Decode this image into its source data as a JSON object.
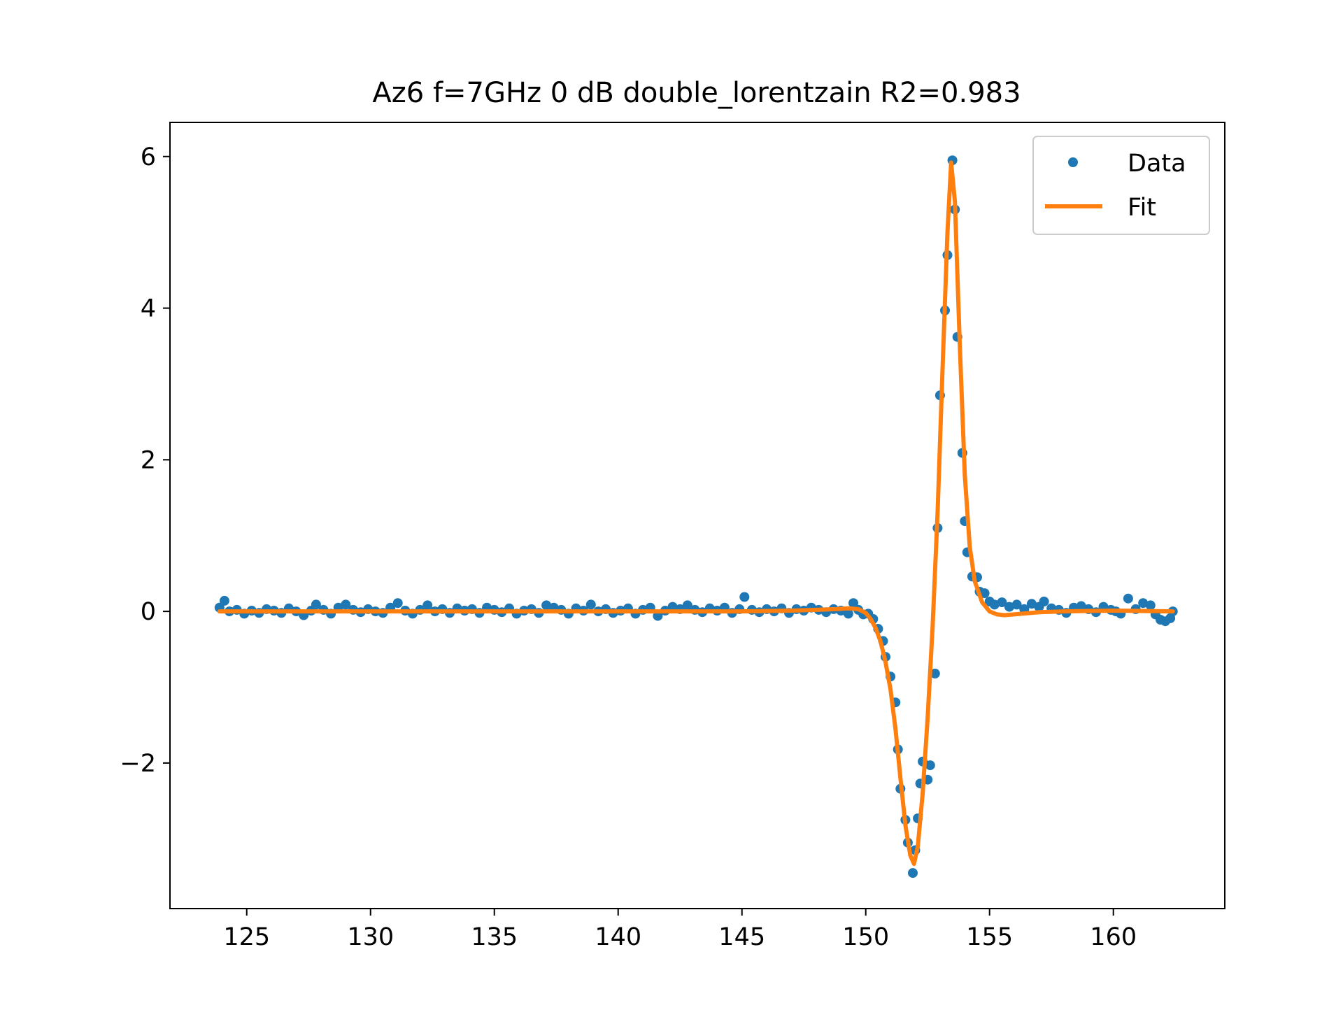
{
  "chart_data": {
    "type": "scatter",
    "title": "Az6 f=7GHz 0 dB double_lorentzain R2=0.983",
    "xlabel": "",
    "ylabel": "",
    "xlim": [
      121.9,
      164.5
    ],
    "ylim": [
      -3.92,
      6.45
    ],
    "xticks": [
      125,
      130,
      135,
      140,
      145,
      150,
      155,
      160
    ],
    "yticks": [
      -2,
      0,
      2,
      4,
      6
    ],
    "ytick_labels": [
      "−2",
      "0",
      "2",
      "4",
      "6"
    ],
    "legend": {
      "position": "top-right",
      "entries": [
        "Data",
        "Fit"
      ]
    },
    "grid": false,
    "colors": {
      "data": "#1f77b4",
      "fit": "#ff7f0e"
    },
    "series": [
      {
        "name": "Data",
        "kind": "points",
        "points": [
          [
            123.9,
            0.05
          ],
          [
            124.1,
            0.14
          ],
          [
            124.3,
            0.0
          ],
          [
            124.6,
            0.02
          ],
          [
            124.9,
            -0.03
          ],
          [
            125.2,
            0.01
          ],
          [
            125.5,
            -0.02
          ],
          [
            125.8,
            0.03
          ],
          [
            126.1,
            0.01
          ],
          [
            126.4,
            -0.02
          ],
          [
            126.7,
            0.04
          ],
          [
            127.0,
            0.0
          ],
          [
            127.3,
            -0.05
          ],
          [
            127.6,
            0.01
          ],
          [
            127.8,
            0.09
          ],
          [
            128.1,
            0.02
          ],
          [
            128.4,
            -0.03
          ],
          [
            128.7,
            0.05
          ],
          [
            129.0,
            0.09
          ],
          [
            129.3,
            0.02
          ],
          [
            129.6,
            -0.01
          ],
          [
            129.9,
            0.03
          ],
          [
            130.2,
            0.0
          ],
          [
            130.5,
            -0.02
          ],
          [
            130.8,
            0.05
          ],
          [
            131.1,
            0.11
          ],
          [
            131.4,
            0.01
          ],
          [
            131.7,
            -0.03
          ],
          [
            132.0,
            0.02
          ],
          [
            132.3,
            0.08
          ],
          [
            132.6,
            0.0
          ],
          [
            132.9,
            0.03
          ],
          [
            133.2,
            -0.02
          ],
          [
            133.5,
            0.04
          ],
          [
            133.8,
            0.01
          ],
          [
            134.1,
            0.03
          ],
          [
            134.4,
            -0.02
          ],
          [
            134.7,
            0.05
          ],
          [
            135.0,
            0.02
          ],
          [
            135.3,
            -0.01
          ],
          [
            135.6,
            0.04
          ],
          [
            135.9,
            -0.03
          ],
          [
            136.2,
            0.01
          ],
          [
            136.5,
            0.03
          ],
          [
            136.8,
            -0.02
          ],
          [
            137.1,
            0.08
          ],
          [
            137.4,
            0.05
          ],
          [
            137.7,
            0.02
          ],
          [
            138.0,
            -0.03
          ],
          [
            138.3,
            0.04
          ],
          [
            138.6,
            0.01
          ],
          [
            138.9,
            0.09
          ],
          [
            139.2,
            0.0
          ],
          [
            139.5,
            0.03
          ],
          [
            139.8,
            -0.02
          ],
          [
            140.1,
            0.01
          ],
          [
            140.4,
            0.04
          ],
          [
            140.7,
            -0.03
          ],
          [
            141.0,
            0.02
          ],
          [
            141.3,
            0.05
          ],
          [
            141.6,
            -0.06
          ],
          [
            141.9,
            0.01
          ],
          [
            142.2,
            0.06
          ],
          [
            142.5,
            0.03
          ],
          [
            142.8,
            0.08
          ],
          [
            143.1,
            0.02
          ],
          [
            143.4,
            -0.01
          ],
          [
            143.7,
            0.04
          ],
          [
            144.0,
            0.01
          ],
          [
            144.3,
            0.05
          ],
          [
            144.6,
            -0.02
          ],
          [
            144.9,
            0.03
          ],
          [
            145.1,
            0.19
          ],
          [
            145.4,
            0.02
          ],
          [
            145.7,
            -0.01
          ],
          [
            146.0,
            0.03
          ],
          [
            146.3,
            0.0
          ],
          [
            146.6,
            0.04
          ],
          [
            146.9,
            -0.02
          ],
          [
            147.2,
            0.03
          ],
          [
            147.5,
            0.01
          ],
          [
            147.8,
            0.05
          ],
          [
            148.1,
            0.02
          ],
          [
            148.4,
            -0.01
          ],
          [
            148.7,
            0.03
          ],
          [
            149.0,
            0.01
          ],
          [
            149.3,
            -0.03
          ],
          [
            149.5,
            0.11
          ],
          [
            149.7,
            0.02
          ],
          [
            149.9,
            -0.04
          ],
          [
            150.1,
            -0.03
          ],
          [
            150.3,
            -0.1
          ],
          [
            150.5,
            -0.23
          ],
          [
            150.7,
            -0.39
          ],
          [
            150.8,
            -0.6
          ],
          [
            151.0,
            -0.86
          ],
          [
            151.2,
            -1.2
          ],
          [
            151.3,
            -1.82
          ],
          [
            151.4,
            -2.34
          ],
          [
            151.6,
            -2.75
          ],
          [
            151.7,
            -3.05
          ],
          [
            151.9,
            -3.45
          ],
          [
            152.0,
            -3.15
          ],
          [
            152.1,
            -2.73
          ],
          [
            152.2,
            -2.27
          ],
          [
            152.3,
            -1.98
          ],
          [
            152.5,
            -2.22
          ],
          [
            152.6,
            -2.03
          ],
          [
            152.8,
            -0.82
          ],
          [
            152.9,
            1.1
          ],
          [
            153.0,
            2.85
          ],
          [
            153.2,
            3.97
          ],
          [
            153.3,
            4.7
          ],
          [
            153.5,
            5.95
          ],
          [
            153.6,
            5.3
          ],
          [
            153.7,
            3.62
          ],
          [
            153.9,
            2.09
          ],
          [
            154.0,
            1.19
          ],
          [
            154.1,
            0.78
          ],
          [
            154.3,
            0.46
          ],
          [
            154.5,
            0.45
          ],
          [
            154.6,
            0.26
          ],
          [
            154.8,
            0.24
          ],
          [
            155.0,
            0.13
          ],
          [
            155.2,
            0.09
          ],
          [
            155.5,
            0.12
          ],
          [
            155.8,
            0.06
          ],
          [
            156.1,
            0.09
          ],
          [
            156.4,
            0.03
          ],
          [
            156.7,
            0.1
          ],
          [
            157.0,
            0.06
          ],
          [
            157.2,
            0.13
          ],
          [
            157.5,
            0.04
          ],
          [
            157.8,
            0.02
          ],
          [
            158.1,
            -0.02
          ],
          [
            158.4,
            0.05
          ],
          [
            158.7,
            0.07
          ],
          [
            159.0,
            0.03
          ],
          [
            159.3,
            -0.01
          ],
          [
            159.6,
            0.06
          ],
          [
            159.9,
            0.02
          ],
          [
            160.1,
            0.0
          ],
          [
            160.3,
            -0.03
          ],
          [
            160.6,
            0.17
          ],
          [
            160.9,
            0.03
          ],
          [
            161.2,
            0.11
          ],
          [
            161.5,
            0.08
          ],
          [
            161.7,
            -0.04
          ],
          [
            161.9,
            -0.11
          ],
          [
            162.1,
            -0.13
          ],
          [
            162.3,
            -0.09
          ],
          [
            162.4,
            0.0
          ]
        ]
      },
      {
        "name": "Fit",
        "kind": "line",
        "points": [
          [
            123.9,
            0.0
          ],
          [
            126.0,
            0.0
          ],
          [
            130.0,
            0.0
          ],
          [
            135.0,
            0.0
          ],
          [
            140.0,
            0.0
          ],
          [
            145.0,
            0.0
          ],
          [
            147.0,
            0.01
          ],
          [
            148.0,
            0.02
          ],
          [
            148.8,
            0.03
          ],
          [
            149.3,
            0.04
          ],
          [
            149.7,
            0.03
          ],
          [
            150.0,
            -0.02
          ],
          [
            150.2,
            -0.1
          ],
          [
            150.4,
            -0.22
          ],
          [
            150.6,
            -0.4
          ],
          [
            150.8,
            -0.67
          ],
          [
            151.0,
            -1.03
          ],
          [
            151.2,
            -1.55
          ],
          [
            151.4,
            -2.2
          ],
          [
            151.6,
            -2.82
          ],
          [
            151.8,
            -3.22
          ],
          [
            151.95,
            -3.33
          ],
          [
            152.1,
            -3.1
          ],
          [
            152.3,
            -2.4
          ],
          [
            152.5,
            -1.4
          ],
          [
            152.7,
            -0.2
          ],
          [
            152.9,
            1.3
          ],
          [
            153.1,
            3.2
          ],
          [
            153.3,
            5.0
          ],
          [
            153.45,
            5.92
          ],
          [
            153.6,
            5.4
          ],
          [
            153.8,
            3.5
          ],
          [
            154.0,
            1.8
          ],
          [
            154.2,
            0.85
          ],
          [
            154.4,
            0.4
          ],
          [
            154.7,
            0.12
          ],
          [
            155.0,
            0.0
          ],
          [
            155.3,
            -0.04
          ],
          [
            155.6,
            -0.05
          ],
          [
            156.0,
            -0.04
          ],
          [
            157.0,
            -0.01
          ],
          [
            158.0,
            0.0
          ],
          [
            160.0,
            0.01
          ],
          [
            162.4,
            0.0
          ]
        ]
      }
    ]
  }
}
